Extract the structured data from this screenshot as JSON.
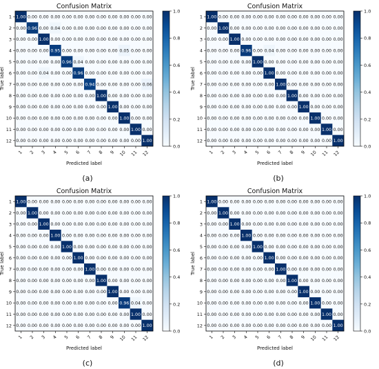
{
  "chart_data": [
    {
      "type": "heatmap",
      "panel_label": "(a)",
      "title": "Confusion Matrix",
      "xlabel": "Predicted label",
      "ylabel": "True label",
      "categories": [
        "1",
        "2",
        "3",
        "4",
        "5",
        "6",
        "7",
        "8",
        "9",
        "10",
        "11",
        "12"
      ],
      "matrix": [
        [
          1.0,
          0.0,
          0.0,
          0.0,
          0.0,
          0.0,
          0.0,
          0.0,
          0.0,
          0.0,
          0.0,
          0.0
        ],
        [
          0.0,
          0.96,
          0.0,
          0.04,
          0.0,
          0.0,
          0.0,
          0.0,
          0.0,
          0.0,
          0.0,
          0.0
        ],
        [
          0.0,
          0.0,
          1.0,
          0.0,
          0.0,
          0.0,
          0.0,
          0.0,
          0.0,
          0.0,
          0.0,
          0.0
        ],
        [
          0.0,
          0.0,
          0.0,
          0.95,
          0.0,
          0.0,
          0.0,
          0.0,
          0.0,
          0.05,
          0.0,
          0.0
        ],
        [
          0.0,
          0.0,
          0.0,
          0.0,
          0.96,
          0.04,
          0.0,
          0.0,
          0.0,
          0.0,
          0.0,
          0.0
        ],
        [
          0.0,
          0.0,
          0.04,
          0.0,
          0.0,
          0.96,
          0.0,
          0.0,
          0.0,
          0.0,
          0.0,
          0.0
        ],
        [
          0.0,
          0.0,
          0.0,
          0.0,
          0.0,
          0.0,
          0.94,
          0.0,
          0.0,
          0.0,
          0.0,
          0.06
        ],
        [
          0.0,
          0.0,
          0.0,
          0.0,
          0.0,
          0.0,
          0.0,
          1.0,
          0.0,
          0.0,
          0.0,
          0.0
        ],
        [
          0.0,
          0.0,
          0.0,
          0.0,
          0.0,
          0.0,
          0.0,
          0.0,
          1.0,
          0.0,
          0.0,
          0.0
        ],
        [
          0.0,
          0.0,
          0.0,
          0.0,
          0.0,
          0.0,
          0.0,
          0.0,
          0.0,
          1.0,
          0.0,
          0.0
        ],
        [
          0.0,
          0.0,
          0.0,
          0.0,
          0.0,
          0.0,
          0.0,
          0.0,
          0.0,
          0.0,
          1.0,
          0.0
        ],
        [
          0.0,
          0.0,
          0.0,
          0.0,
          0.0,
          0.0,
          0.0,
          0.0,
          0.0,
          0.0,
          0.0,
          1.0
        ]
      ],
      "colorbar": {
        "range": [
          0.0,
          1.0
        ],
        "ticks": [
          "0.0",
          "0.2",
          "0.4",
          "0.6",
          "0.8",
          "1.0"
        ],
        "colormap": "Blues"
      }
    },
    {
      "type": "heatmap",
      "panel_label": "(b)",
      "title": "Confusion Matrix",
      "xlabel": "Predicted label",
      "ylabel": "True label",
      "categories": [
        "1",
        "2",
        "3",
        "4",
        "5",
        "6",
        "7",
        "8",
        "9",
        "10",
        "11",
        "12"
      ],
      "matrix": [
        [
          1.0,
          0.0,
          0.0,
          0.0,
          0.0,
          0.0,
          0.0,
          0.0,
          0.0,
          0.0,
          0.0,
          0.0
        ],
        [
          0.0,
          1.0,
          0.0,
          0.0,
          0.0,
          0.0,
          0.0,
          0.0,
          0.0,
          0.0,
          0.0,
          0.0
        ],
        [
          0.0,
          0.0,
          1.0,
          0.0,
          0.0,
          0.0,
          0.0,
          0.0,
          0.0,
          0.0,
          0.0,
          0.0
        ],
        [
          0.0,
          0.0,
          0.0,
          0.96,
          0.0,
          0.04,
          0.0,
          0.0,
          0.0,
          0.0,
          0.0,
          0.0
        ],
        [
          0.0,
          0.0,
          0.0,
          0.0,
          1.0,
          0.0,
          0.0,
          0.0,
          0.0,
          0.0,
          0.0,
          0.0
        ],
        [
          0.0,
          0.0,
          0.0,
          0.0,
          0.0,
          1.0,
          0.0,
          0.0,
          0.0,
          0.0,
          0.0,
          0.0
        ],
        [
          0.0,
          0.0,
          0.0,
          0.0,
          0.0,
          0.0,
          1.0,
          0.0,
          0.0,
          0.0,
          0.0,
          0.0
        ],
        [
          0.0,
          0.0,
          0.0,
          0.0,
          0.0,
          0.0,
          0.0,
          1.0,
          0.0,
          0.0,
          0.0,
          0.0
        ],
        [
          0.0,
          0.0,
          0.0,
          0.0,
          0.0,
          0.0,
          0.0,
          0.0,
          1.0,
          0.0,
          0.0,
          0.0
        ],
        [
          0.0,
          0.0,
          0.0,
          0.0,
          0.0,
          0.0,
          0.0,
          0.0,
          0.0,
          1.0,
          0.0,
          0.0
        ],
        [
          0.0,
          0.0,
          0.0,
          0.0,
          0.0,
          0.0,
          0.0,
          0.0,
          0.0,
          0.0,
          1.0,
          0.0
        ],
        [
          0.0,
          0.0,
          0.0,
          0.0,
          0.0,
          0.0,
          0.0,
          0.0,
          0.0,
          0.0,
          0.0,
          1.0
        ]
      ],
      "colorbar": {
        "range": [
          0.0,
          1.0
        ],
        "ticks": [
          "0.0",
          "0.2",
          "0.4",
          "0.6",
          "0.8",
          "1.0"
        ],
        "colormap": "Blues"
      }
    },
    {
      "type": "heatmap",
      "panel_label": "(c)",
      "title": "Confusion Matrix",
      "xlabel": "Predicted label",
      "ylabel": "True label",
      "categories": [
        "1",
        "2",
        "3",
        "4",
        "5",
        "6",
        "7",
        "8",
        "9",
        "10",
        "11",
        "12"
      ],
      "matrix": [
        [
          1.0,
          0.0,
          0.0,
          0.0,
          0.0,
          0.0,
          0.0,
          0.0,
          0.0,
          0.0,
          0.0,
          0.0
        ],
        [
          0.0,
          1.0,
          0.0,
          0.0,
          0.0,
          0.0,
          0.0,
          0.0,
          0.0,
          0.0,
          0.0,
          0.0
        ],
        [
          0.0,
          0.0,
          1.0,
          0.0,
          0.0,
          0.0,
          0.0,
          0.0,
          0.0,
          0.0,
          0.0,
          0.0
        ],
        [
          0.0,
          0.0,
          0.0,
          1.0,
          0.0,
          0.0,
          0.0,
          0.0,
          0.0,
          0.0,
          0.0,
          0.0
        ],
        [
          0.0,
          0.0,
          0.0,
          0.0,
          1.0,
          0.0,
          0.0,
          0.0,
          0.0,
          0.0,
          0.0,
          0.0
        ],
        [
          0.0,
          0.0,
          0.0,
          0.0,
          0.0,
          1.0,
          0.0,
          0.0,
          0.0,
          0.0,
          0.0,
          0.0
        ],
        [
          0.0,
          0.0,
          0.0,
          0.0,
          0.0,
          0.0,
          1.0,
          0.0,
          0.0,
          0.0,
          0.0,
          0.0
        ],
        [
          0.0,
          0.0,
          0.0,
          0.0,
          0.0,
          0.0,
          0.0,
          1.0,
          0.0,
          0.0,
          0.0,
          0.0
        ],
        [
          0.0,
          0.0,
          0.0,
          0.0,
          0.0,
          0.0,
          0.0,
          0.0,
          1.0,
          0.0,
          0.0,
          0.0
        ],
        [
          0.0,
          0.0,
          0.0,
          0.0,
          0.0,
          0.0,
          0.0,
          0.0,
          0.0,
          0.96,
          0.04,
          0.0
        ],
        [
          0.0,
          0.0,
          0.0,
          0.0,
          0.0,
          0.0,
          0.0,
          0.0,
          0.0,
          0.0,
          1.0,
          0.0
        ],
        [
          0.0,
          0.0,
          0.0,
          0.0,
          0.0,
          0.0,
          0.0,
          0.0,
          0.0,
          0.0,
          0.0,
          1.0
        ]
      ],
      "colorbar": {
        "range": [
          0.0,
          1.0
        ],
        "ticks": [
          "0.0",
          "0.2",
          "0.4",
          "0.6",
          "0.8",
          "1.0"
        ],
        "colormap": "Blues"
      }
    },
    {
      "type": "heatmap",
      "panel_label": "(d)",
      "title": "Confusion Matrix",
      "xlabel": "Predicted label",
      "ylabel": "True label",
      "categories": [
        "1",
        "2",
        "3",
        "4",
        "5",
        "6",
        "7",
        "8",
        "9",
        "10",
        "11",
        "12"
      ],
      "matrix": [
        [
          1.0,
          0.0,
          0.0,
          0.0,
          0.0,
          0.0,
          0.0,
          0.0,
          0.0,
          0.0,
          0.0,
          0.0
        ],
        [
          0.0,
          1.0,
          0.0,
          0.0,
          0.0,
          0.0,
          0.0,
          0.0,
          0.0,
          0.0,
          0.0,
          0.0
        ],
        [
          0.0,
          0.0,
          1.0,
          0.0,
          0.0,
          0.0,
          0.0,
          0.0,
          0.0,
          0.0,
          0.0,
          0.0
        ],
        [
          0.0,
          0.0,
          0.0,
          1.0,
          0.0,
          0.0,
          0.0,
          0.0,
          0.0,
          0.0,
          0.0,
          0.0
        ],
        [
          0.0,
          0.0,
          0.0,
          0.0,
          1.0,
          0.0,
          0.0,
          0.0,
          0.0,
          0.0,
          0.0,
          0.0
        ],
        [
          0.0,
          0.0,
          0.0,
          0.0,
          0.0,
          1.0,
          0.0,
          0.0,
          0.0,
          0.0,
          0.0,
          0.0
        ],
        [
          0.0,
          0.0,
          0.0,
          0.0,
          0.0,
          0.0,
          1.0,
          0.0,
          0.0,
          0.0,
          0.0,
          0.0
        ],
        [
          0.0,
          0.0,
          0.0,
          0.0,
          0.0,
          0.0,
          0.0,
          1.0,
          0.0,
          0.0,
          0.0,
          0.0
        ],
        [
          0.0,
          0.0,
          0.0,
          0.0,
          0.0,
          0.0,
          0.0,
          0.0,
          1.0,
          0.0,
          0.0,
          0.0
        ],
        [
          0.0,
          0.0,
          0.0,
          0.0,
          0.0,
          0.0,
          0.0,
          0.0,
          0.0,
          1.0,
          0.0,
          0.0
        ],
        [
          0.0,
          0.0,
          0.0,
          0.0,
          0.0,
          0.0,
          0.0,
          0.0,
          0.0,
          0.0,
          1.0,
          0.0
        ],
        [
          0.0,
          0.0,
          0.0,
          0.0,
          0.0,
          0.0,
          0.0,
          0.0,
          0.0,
          0.0,
          0.0,
          1.0
        ]
      ],
      "colorbar": {
        "range": [
          0.0,
          1.0
        ],
        "ticks": [
          "0.0",
          "0.2",
          "0.4",
          "0.6",
          "0.8",
          "1.0"
        ],
        "colormap": "Blues"
      }
    }
  ]
}
